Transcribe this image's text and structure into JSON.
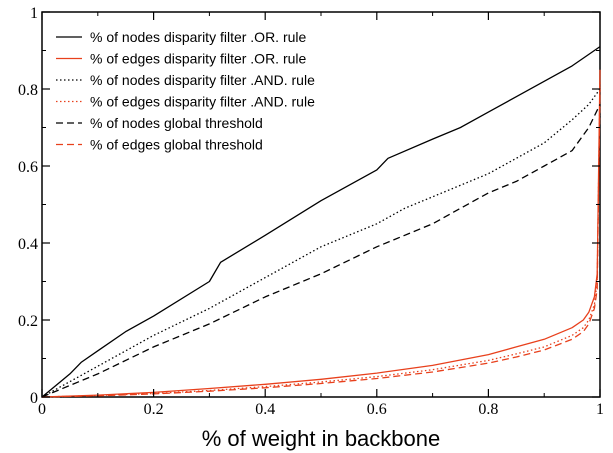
{
  "chart_data": {
    "type": "line",
    "title": "",
    "xlabel": "% of weight in backbone",
    "ylabel": "",
    "xlim": [
      0,
      1
    ],
    "ylim": [
      0,
      1
    ],
    "x_ticks": [
      "0",
      "0.2",
      "0.4",
      "0.6",
      "0.8",
      "1"
    ],
    "y_ticks": [
      "0",
      "0.2",
      "0.4",
      "0.6",
      "0.8",
      "1"
    ],
    "grid": false,
    "legend_position": "top-left",
    "series": [
      {
        "name": "% of nodes disparity filter .OR. rule",
        "color": "#000000",
        "dash": "solid",
        "x": [
          0,
          0.05,
          0.07,
          0.1,
          0.15,
          0.2,
          0.3,
          0.32,
          0.4,
          0.5,
          0.6,
          0.62,
          0.7,
          0.75,
          0.8,
          0.85,
          0.9,
          0.95,
          0.98,
          1.0
        ],
        "y": [
          0,
          0.06,
          0.09,
          0.12,
          0.17,
          0.21,
          0.3,
          0.35,
          0.42,
          0.51,
          0.59,
          0.62,
          0.67,
          0.7,
          0.74,
          0.78,
          0.82,
          0.86,
          0.89,
          0.91
        ]
      },
      {
        "name": "% of edges disparity filter .OR. rule",
        "color": "#e8401c",
        "dash": "solid",
        "x": [
          0,
          0.1,
          0.2,
          0.3,
          0.4,
          0.5,
          0.6,
          0.7,
          0.8,
          0.85,
          0.9,
          0.95,
          0.97,
          0.98,
          0.99,
          0.995,
          1.0
        ],
        "y": [
          0,
          0.005,
          0.012,
          0.022,
          0.033,
          0.046,
          0.062,
          0.082,
          0.11,
          0.13,
          0.15,
          0.18,
          0.2,
          0.22,
          0.26,
          0.32,
          0.85
        ]
      },
      {
        "name": "% of nodes disparity filter .AND. rule",
        "color": "#000000",
        "dash": "dotted",
        "x": [
          0,
          0.05,
          0.1,
          0.2,
          0.3,
          0.4,
          0.5,
          0.6,
          0.65,
          0.7,
          0.8,
          0.85,
          0.9,
          0.95,
          0.98,
          1.0
        ],
        "y": [
          0,
          0.04,
          0.08,
          0.16,
          0.23,
          0.31,
          0.39,
          0.45,
          0.49,
          0.52,
          0.58,
          0.62,
          0.66,
          0.72,
          0.76,
          0.8
        ]
      },
      {
        "name": "% of edges disparity filter .AND. rule",
        "color": "#e8401c",
        "dash": "dotted",
        "x": [
          0,
          0.1,
          0.2,
          0.3,
          0.4,
          0.5,
          0.6,
          0.7,
          0.8,
          0.85,
          0.9,
          0.95,
          0.97,
          0.98,
          0.99,
          0.995,
          1.0
        ],
        "y": [
          0,
          0.004,
          0.009,
          0.017,
          0.027,
          0.039,
          0.053,
          0.071,
          0.095,
          0.112,
          0.13,
          0.16,
          0.18,
          0.2,
          0.24,
          0.3,
          0.82
        ]
      },
      {
        "name": "% of nodes global threshold",
        "color": "#000000",
        "dash": "dashed",
        "x": [
          0,
          0.05,
          0.1,
          0.2,
          0.3,
          0.4,
          0.5,
          0.6,
          0.7,
          0.75,
          0.8,
          0.85,
          0.9,
          0.95,
          0.98,
          1.0
        ],
        "y": [
          0,
          0.03,
          0.06,
          0.13,
          0.19,
          0.26,
          0.32,
          0.39,
          0.45,
          0.49,
          0.53,
          0.56,
          0.6,
          0.64,
          0.7,
          0.76
        ]
      },
      {
        "name": "% of edges global threshold",
        "color": "#e8401c",
        "dash": "dashed",
        "x": [
          0,
          0.1,
          0.2,
          0.3,
          0.4,
          0.5,
          0.6,
          0.7,
          0.8,
          0.85,
          0.9,
          0.95,
          0.97,
          0.98,
          0.99,
          0.995,
          1.0
        ],
        "y": [
          0,
          0.003,
          0.008,
          0.015,
          0.024,
          0.035,
          0.048,
          0.065,
          0.088,
          0.104,
          0.122,
          0.15,
          0.17,
          0.19,
          0.23,
          0.28,
          0.8
        ]
      }
    ]
  }
}
